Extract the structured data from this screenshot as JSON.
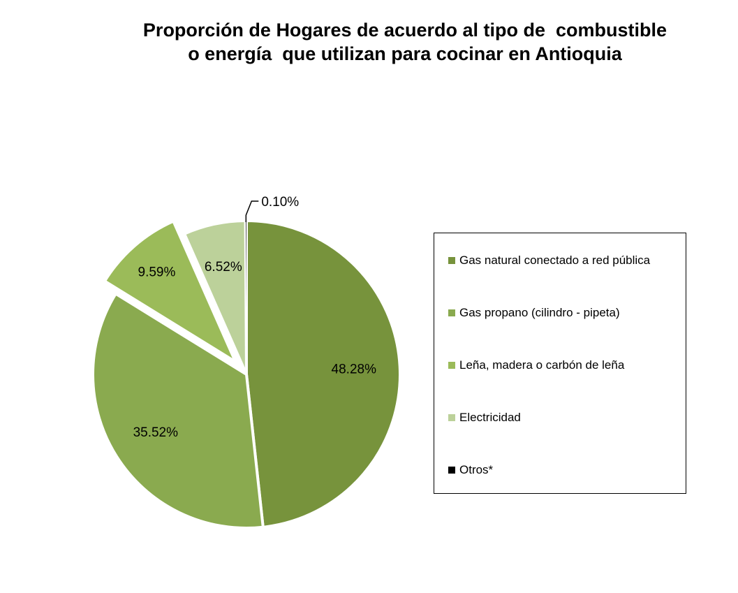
{
  "chart_data": {
    "type": "pie",
    "title_lines": [
      "Proporción de Hogares de acuerdo al tipo de  combustible",
      "o energía  que utilizan para cocinar en Antioquia"
    ],
    "categories": [
      "Gas natural conectado a red pública",
      "Gas propano (cilindro - pipeta)",
      "Leña, madera o carbón de leña",
      "Electricidad",
      "Otros*"
    ],
    "values": [
      48.28,
      35.52,
      9.59,
      6.52,
      0.1
    ],
    "data_labels": [
      "48.28%",
      "35.52%",
      "9.59%",
      "6.52%",
      "0.10%"
    ],
    "colors": [
      "#77933c",
      "#8aaa4f",
      "#9bbb59",
      "#bcd19a",
      "#000000"
    ],
    "exploded": [
      false,
      false,
      true,
      false,
      false
    ],
    "legend_position": "right"
  }
}
